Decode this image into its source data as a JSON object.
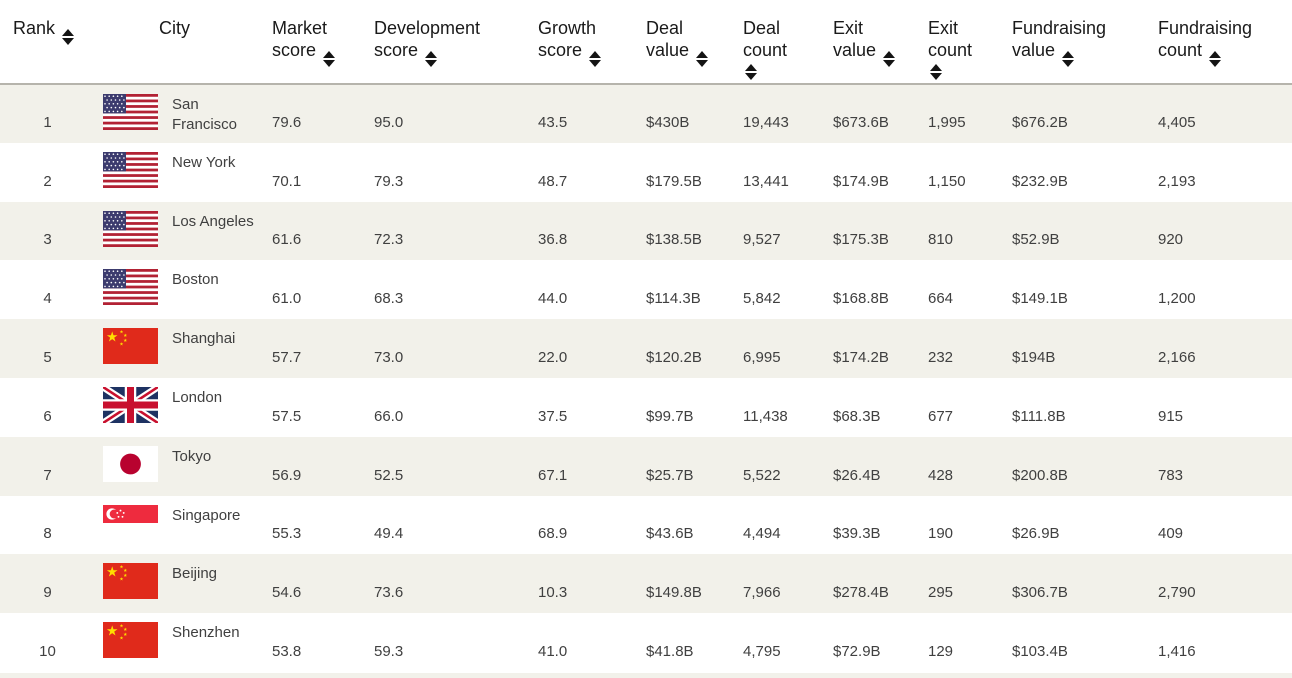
{
  "table": {
    "columns": [
      {
        "label": "Rank",
        "sortable": true
      },
      {
        "label": "City",
        "sortable": false
      },
      {
        "label": "Market score",
        "sortable": true
      },
      {
        "label": "Development score",
        "sortable": true
      },
      {
        "label": "Growth score",
        "sortable": true
      },
      {
        "label": "Deal value",
        "sortable": true
      },
      {
        "label": "Deal count",
        "sortable": true
      },
      {
        "label": "Exit value",
        "sortable": true
      },
      {
        "label": "Exit count",
        "sortable": true
      },
      {
        "label": "Fundraising value",
        "sortable": true
      },
      {
        "label": "Fundraising count",
        "sortable": true
      }
    ],
    "rows": [
      {
        "rank": "1",
        "city": "San Francisco",
        "flag": "us",
        "values": [
          "79.6",
          "95.0",
          "43.5",
          "$430B",
          "19,443",
          "$673.6B",
          "1,995",
          "$676.2B",
          "4,405"
        ]
      },
      {
        "rank": "2",
        "city": "New York",
        "flag": "us",
        "values": [
          "70.1",
          "79.3",
          "48.7",
          "$179.5B",
          "13,441",
          "$174.9B",
          "1,150",
          "$232.9B",
          "2,193"
        ]
      },
      {
        "rank": "3",
        "city": "Los Angeles",
        "flag": "us",
        "values": [
          "61.6",
          "72.3",
          "36.8",
          "$138.5B",
          "9,527",
          "$175.3B",
          "810",
          "$52.9B",
          "920"
        ]
      },
      {
        "rank": "4",
        "city": "Boston",
        "flag": "us",
        "values": [
          "61.0",
          "68.3",
          "44.0",
          "$114.3B",
          "5,842",
          "$168.8B",
          "664",
          "$149.1B",
          "1,200"
        ]
      },
      {
        "rank": "5",
        "city": "Shanghai",
        "flag": "cn",
        "values": [
          "57.7",
          "73.0",
          "22.0",
          "$120.2B",
          "6,995",
          "$174.2B",
          "232",
          "$194B",
          "2,166"
        ]
      },
      {
        "rank": "6",
        "city": "London",
        "flag": "gb",
        "values": [
          "57.5",
          "66.0",
          "37.5",
          "$99.7B",
          "11,438",
          "$68.3B",
          "677",
          "$111.8B",
          "915"
        ]
      },
      {
        "rank": "7",
        "city": "Tokyo",
        "flag": "jp",
        "values": [
          "56.9",
          "52.5",
          "67.1",
          "$25.7B",
          "5,522",
          "$26.4B",
          "428",
          "$200.8B",
          "783"
        ]
      },
      {
        "rank": "8",
        "city": "Singapore",
        "flag": "sg",
        "values": [
          "55.3",
          "49.4",
          "68.9",
          "$43.6B",
          "4,494",
          "$39.3B",
          "190",
          "$26.9B",
          "409"
        ]
      },
      {
        "rank": "9",
        "city": "Beijing",
        "flag": "cn",
        "values": [
          "54.6",
          "73.6",
          "10.3",
          "$149.8B",
          "7,966",
          "$278.4B",
          "295",
          "$306.7B",
          "2,790"
        ]
      },
      {
        "rank": "10",
        "city": "Shenzhen",
        "flag": "cn",
        "values": [
          "53.8",
          "59.3",
          "41.0",
          "$41.8B",
          "4,795",
          "$72.9B",
          "129",
          "$103.4B",
          "1,416"
        ]
      }
    ]
  },
  "flags": {
    "us": "united-states",
    "cn": "china",
    "gb": "united-kingdom",
    "jp": "japan",
    "sg": "singapore"
  },
  "colors": {
    "row_stripe": "#f2f1ea",
    "header_divider": "#b6b4ac",
    "header_text": "#1a1a1a",
    "body_text": "#404040",
    "sort_icon": "#141414",
    "flag_red_us": "#B22234",
    "flag_blue_us": "#3C3B6E",
    "flag_red_cn": "#E02A1B",
    "flag_yellow_cn": "#FFDE00",
    "flag_blue_gb": "#1E3262",
    "flag_red_gb": "#C8102E",
    "flag_red_jp": "#B8022F",
    "flag_red_sg": "#EE2B3E"
  }
}
